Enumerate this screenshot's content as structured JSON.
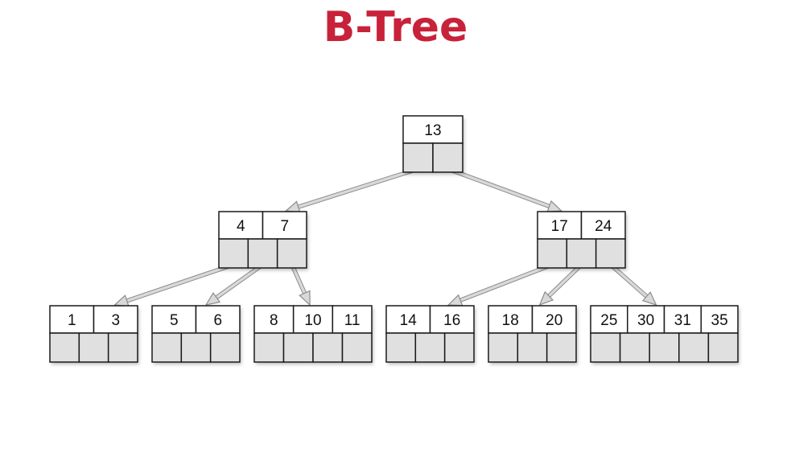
{
  "title": "B-Tree",
  "colors": {
    "title": "#c8223a",
    "key_cell": "#ffffff",
    "pointer_cell": "#e0e0e0",
    "border": "#1a1a1a",
    "arrow": "#8c8c8c",
    "arrow_fill": "#d9d9d9"
  },
  "nodes": [
    {
      "id": "root",
      "keys": [
        "13"
      ]
    },
    {
      "id": "n1",
      "keys": [
        "4",
        "7"
      ]
    },
    {
      "id": "n2",
      "keys": [
        "17",
        "24"
      ]
    },
    {
      "id": "l1",
      "keys": [
        "1",
        "3"
      ]
    },
    {
      "id": "l2",
      "keys": [
        "5",
        "6"
      ]
    },
    {
      "id": "l3",
      "keys": [
        "8",
        "10",
        "11"
      ]
    },
    {
      "id": "l4",
      "keys": [
        "14",
        "16"
      ]
    },
    {
      "id": "l5",
      "keys": [
        "18",
        "20"
      ]
    },
    {
      "id": "l6",
      "keys": [
        "25",
        "30",
        "31",
        "35"
      ]
    }
  ],
  "edges": [
    {
      "from": "root",
      "to": "n1"
    },
    {
      "from": "root",
      "to": "n2"
    },
    {
      "from": "n1",
      "to": "l1"
    },
    {
      "from": "n1",
      "to": "l2"
    },
    {
      "from": "n1",
      "to": "l3"
    },
    {
      "from": "n2",
      "to": "l4"
    },
    {
      "from": "n2",
      "to": "l5"
    },
    {
      "from": "n2",
      "to": "l6"
    }
  ]
}
